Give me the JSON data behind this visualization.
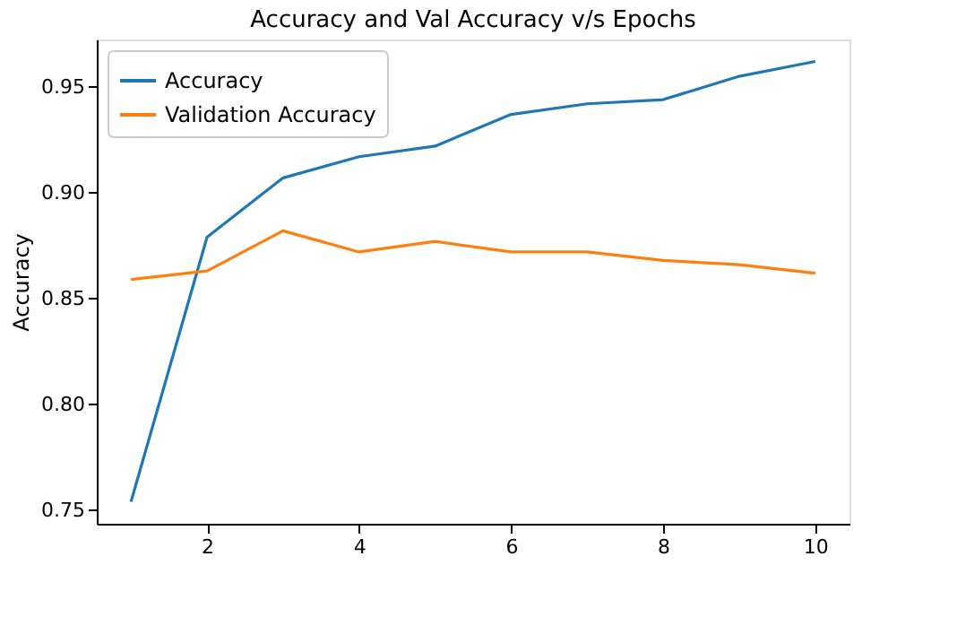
{
  "chart_data": {
    "type": "line",
    "title": "Accuracy and Val Accuracy v/s Epochs",
    "ylabel": "Accuracy",
    "x": [
      1,
      2,
      3,
      4,
      5,
      6,
      7,
      8,
      9,
      10
    ],
    "series": [
      {
        "name": "Accuracy",
        "color": "#1f77b4",
        "values": [
          0.754,
          0.879,
          0.907,
          0.917,
          0.922,
          0.937,
          0.942,
          0.944,
          0.955,
          0.962
        ]
      },
      {
        "name": "Validation Accuracy",
        "color": "#ff7f0e",
        "values": [
          0.859,
          0.863,
          0.882,
          0.872,
          0.877,
          0.872,
          0.872,
          0.868,
          0.866,
          0.862
        ]
      }
    ],
    "xlim": [
      0.55,
      10.45
    ],
    "ylim": [
      0.7436,
      0.9724
    ],
    "xticks": [
      2,
      4,
      6,
      8,
      10
    ],
    "yticks": [
      {
        "value": 0.75,
        "label": "0.75"
      },
      {
        "value": 0.8,
        "label": "0.80"
      },
      {
        "value": 0.85,
        "label": "0.85"
      },
      {
        "value": 0.9,
        "label": "0.90"
      },
      {
        "value": 0.95,
        "label": "0.95"
      }
    ],
    "grid": false,
    "legend": "top left",
    "marker": "none",
    "line_style": "solid"
  }
}
